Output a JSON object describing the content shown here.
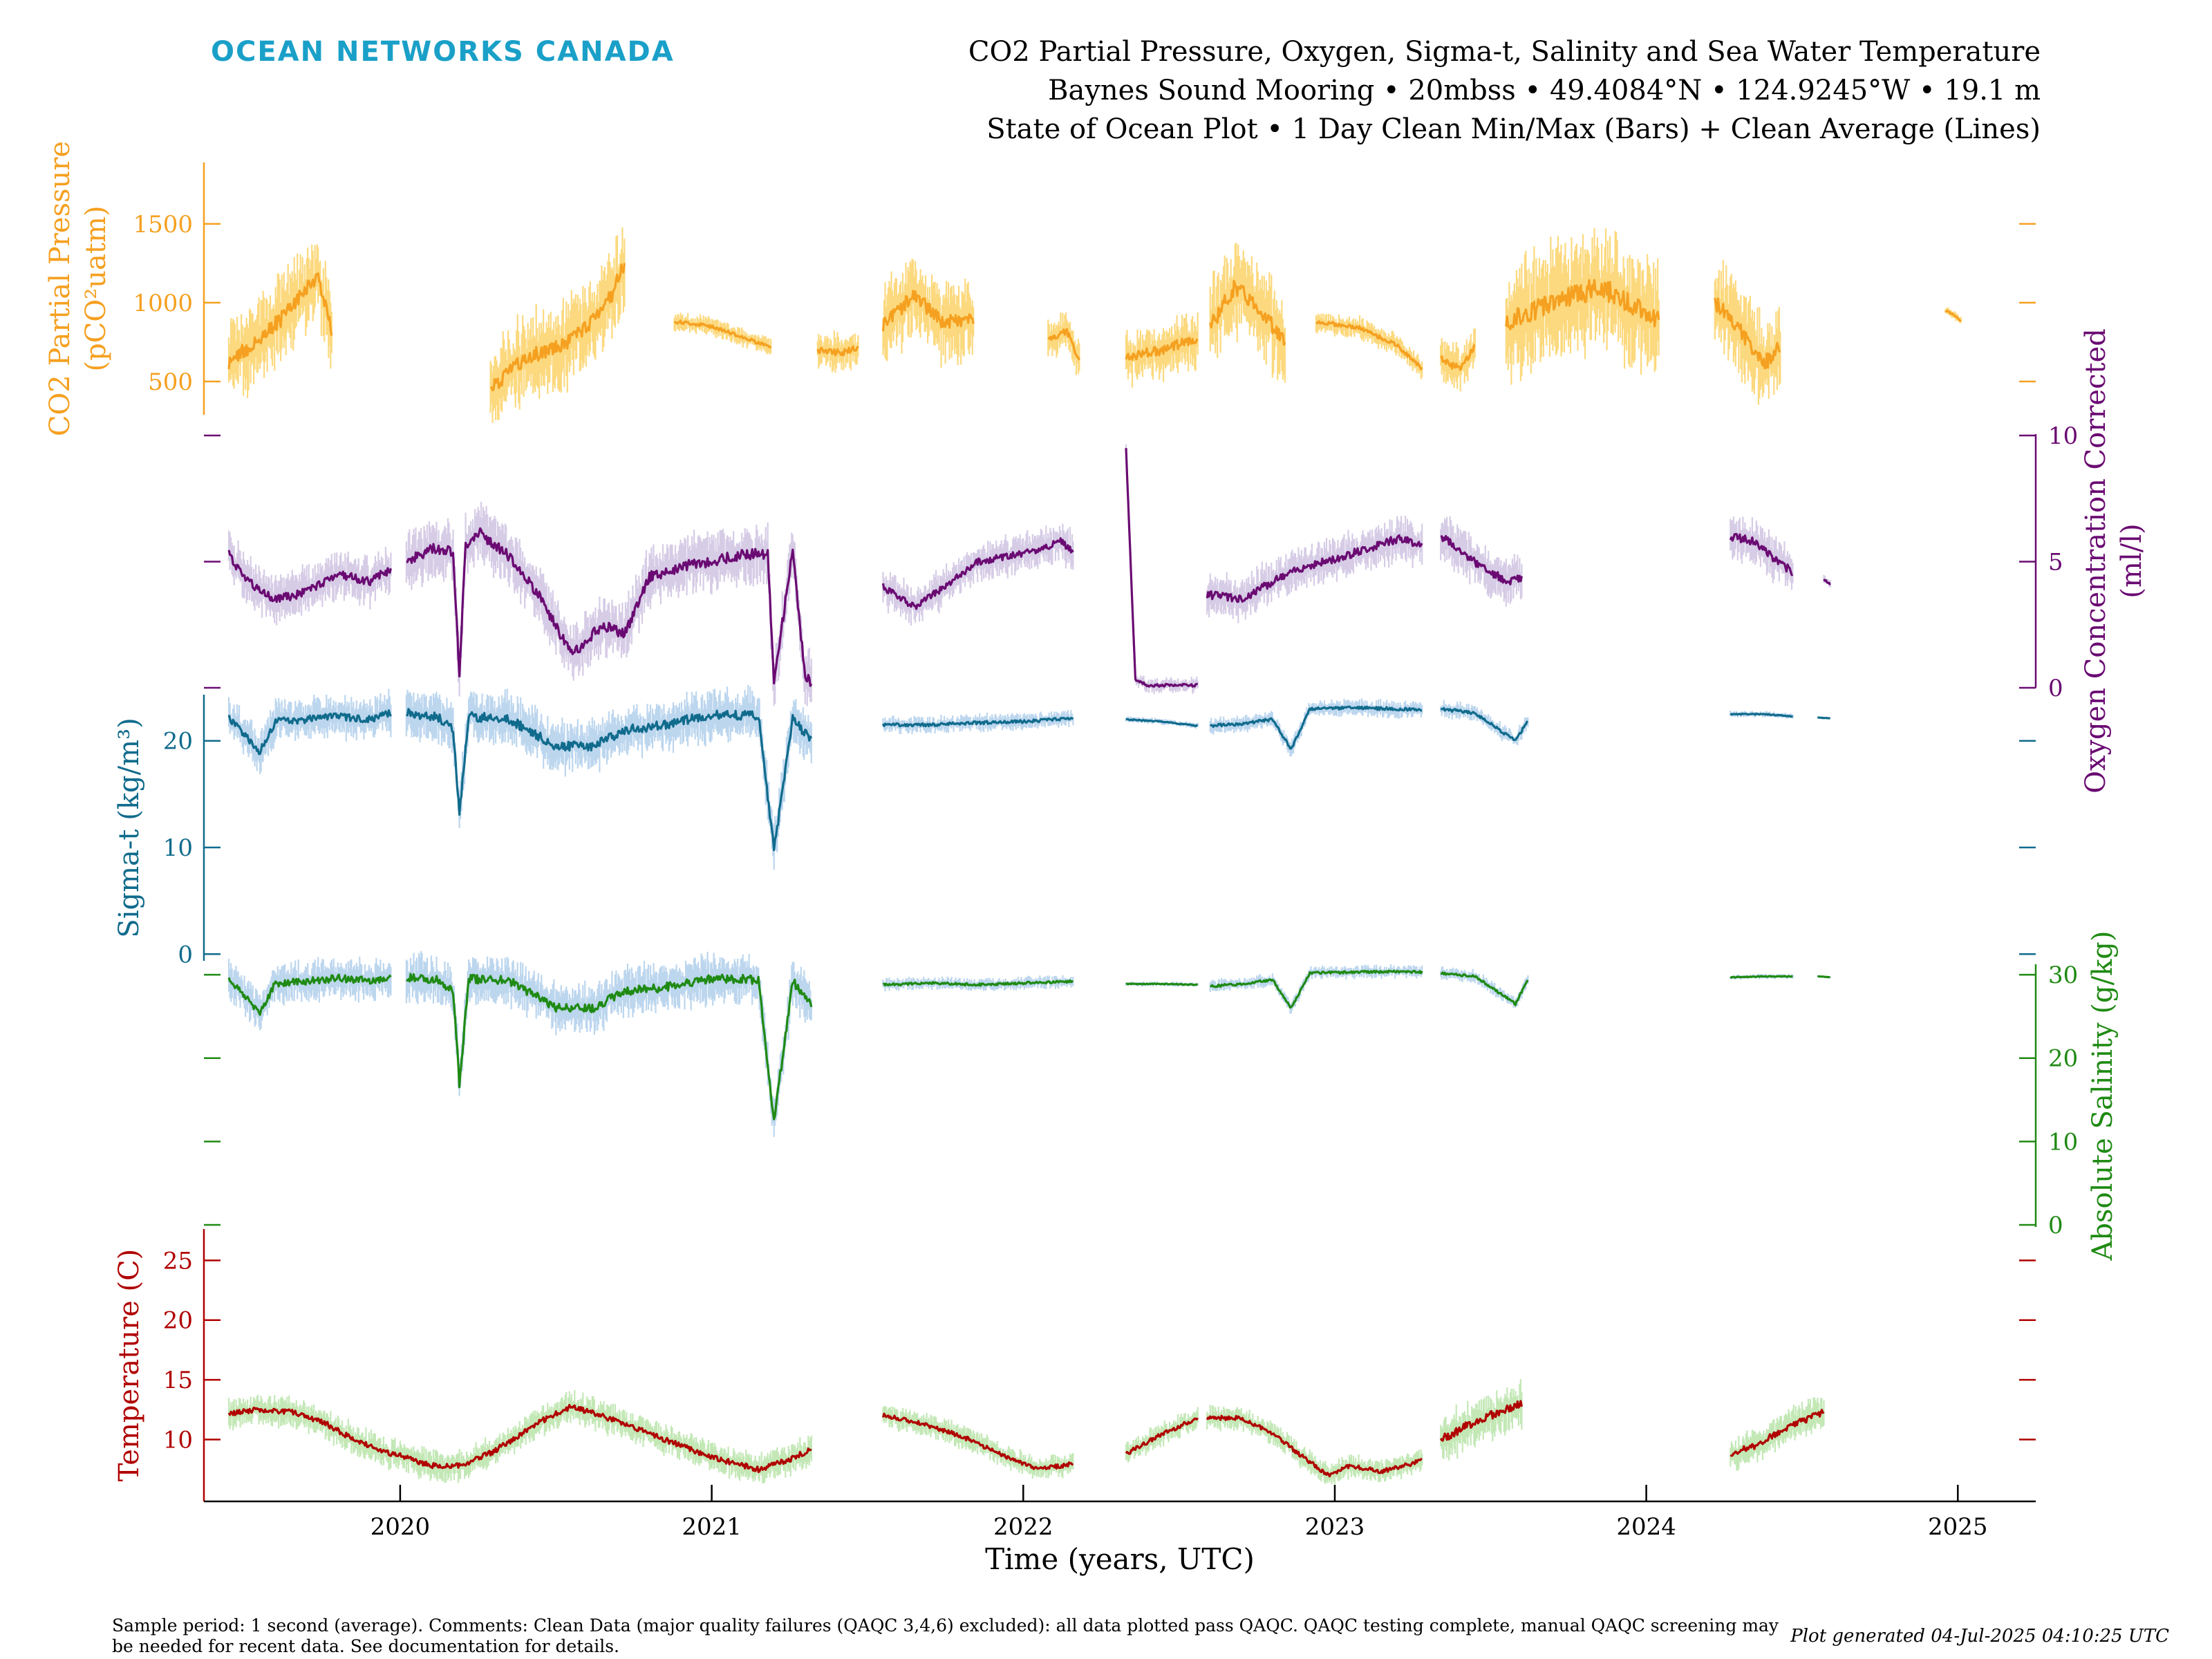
{
  "header": {
    "logo": "OCEAN NETWORKS CANADA",
    "title_line1": "CO2 Partial Pressure, Oxygen, Sigma-t, Salinity and Sea Water Temperature",
    "title_line2": "Baynes Sound Mooring • 20mbss • 49.4084°N • 124.9245°W • 19.1 m",
    "title_line3": "State of Ocean Plot • 1 Day Clean Min/Max (Bars) + Clean Average (Lines)"
  },
  "footer": {
    "comments": "Sample period: 1 second (average). Comments: Clean Data (major quality failures (QAQC 3,4,6) excluded): all data plotted pass QAQC. QAQC testing complete, manual QAQC screening may be needed for recent data. See documentation for details.",
    "generated": "Plot generated 04-Jul-2025 04:10:25 UTC"
  },
  "chart_data": {
    "type": "line",
    "xlabel": "Time (years, UTC)",
    "x_ticks": [
      2020,
      2021,
      2022,
      2023,
      2024,
      2025
    ],
    "xlim": [
      2019.37,
      2025.25
    ],
    "colors": {
      "co2": "#f5a020",
      "co2_band": "#fcd97e",
      "oxygen": "#6a0a72",
      "oxygen_band": "#d6cce6",
      "sigma": "#106b8c",
      "sigma_band": "#bcd6ee",
      "salinity": "#1f8a13",
      "salinity_band": "#bcd6ee",
      "temperature": "#b00000",
      "temperature_band": "#c3e8b6"
    },
    "panels": [
      {
        "key": "co2",
        "ylabel_line1": "CO2 Partial Pressure",
        "ylabel_line2": "(pCO²uatm)",
        "side": "left",
        "ylim": [
          280,
          1890
        ],
        "yticks": [
          500,
          1000,
          1500
        ],
        "segments": [
          {
            "x": [
              2019.45,
              2019.55,
              2019.62,
              2019.68,
              2019.74,
              2019.78
            ],
            "y": [
              620,
              780,
              900,
              1050,
              1150,
              830
            ],
            "spread": 280
          },
          {
            "x": [
              2020.29,
              2020.4,
              2020.52,
              2020.6,
              2020.68,
              2020.72
            ],
            "y": [
              450,
              650,
              720,
              850,
              1050,
              1250
            ],
            "spread": 280
          },
          {
            "x": [
              2020.88,
              2021.0,
              2021.1,
              2021.19
            ],
            "y": [
              880,
              850,
              780,
              720
            ],
            "spread": 60
          },
          {
            "x": [
              2021.34,
              2021.42,
              2021.47
            ],
            "y": [
              700,
              680,
              720
            ],
            "spread": 120
          },
          {
            "x": [
              2021.55,
              2021.65,
              2021.74,
              2021.84
            ],
            "y": [
              850,
              1050,
              880,
              900
            ],
            "spread": 260
          },
          {
            "x": [
              2022.08,
              2022.14,
              2022.18
            ],
            "y": [
              760,
              820,
              640
            ],
            "spread": 130
          },
          {
            "x": [
              2022.33,
              2022.45,
              2022.56
            ],
            "y": [
              660,
              700,
              780
            ],
            "spread": 180
          },
          {
            "x": [
              2022.6,
              2022.68,
              2022.76,
              2022.84
            ],
            "y": [
              850,
              1100,
              960,
              750
            ],
            "spread": 300
          },
          {
            "x": [
              2022.94,
              2023.08,
              2023.2,
              2023.28
            ],
            "y": [
              880,
              840,
              730,
              580
            ],
            "spread": 70
          },
          {
            "x": [
              2023.34,
              2023.4,
              2023.45
            ],
            "y": [
              640,
              580,
              720
            ],
            "spread": 140
          },
          {
            "x": [
              2023.55,
              2023.7,
              2023.85,
              2024.04
            ],
            "y": [
              880,
              1000,
              1100,
              900
            ],
            "spread": 380
          },
          {
            "x": [
              2024.22,
              2024.3,
              2024.38,
              2024.43
            ],
            "y": [
              1000,
              820,
              620,
              720
            ],
            "spread": 300
          },
          {
            "x": [
              2024.96,
              2024.99,
              2025.01
            ],
            "y": [
              950,
              920,
              880
            ],
            "spread": 30
          }
        ]
      },
      {
        "key": "oxygen",
        "ylabel_line1": "Oxygen Concentration Corrected",
        "ylabel_line2": "(ml/l)",
        "side": "right",
        "ylim": [
          0,
          10
        ],
        "yticks": [
          0,
          5,
          10
        ],
        "segments": [
          {
            "x": [
              2019.45,
              2019.5,
              2019.6,
              2019.7,
              2019.8,
              2019.9,
              2019.97
            ],
            "y": [
              5.3,
              4.3,
              3.5,
              3.8,
              4.5,
              4.2,
              4.7
            ],
            "spread": 1.0
          },
          {
            "x": [
              2020.02,
              2020.1,
              2020.17,
              2020.19,
              2020.21,
              2020.25,
              2020.35,
              2020.45,
              2020.55,
              2020.65,
              2020.72,
              2020.8,
              2020.9,
              2021.0,
              2021.1,
              2021.18,
              2021.2,
              2021.26,
              2021.3,
              2021.32
            ],
            "y": [
              5.0,
              5.5,
              5.4,
              0.6,
              5.6,
              6.2,
              5.2,
              3.6,
              1.3,
              2.5,
              2.1,
              4.4,
              4.8,
              5.0,
              5.3,
              5.3,
              0.3,
              5.4,
              0.4,
              0.2
            ],
            "spread": 1.2
          },
          {
            "x": [
              2021.55,
              2021.65,
              2021.75,
              2021.85,
              2021.95,
              2022.05,
              2022.12,
              2022.16
            ],
            "y": [
              4.0,
              3.2,
              4.0,
              5.0,
              5.2,
              5.5,
              5.8,
              5.4
            ],
            "spread": 0.8
          },
          {
            "x": [
              2022.33,
              2022.36,
              2022.4,
              2022.5,
              2022.56
            ],
            "y": [
              9.5,
              0.3,
              0.1,
              0.1,
              0.1
            ],
            "spread": 0.3
          },
          {
            "x": [
              2022.59,
              2022.7,
              2022.8,
              2022.9,
              2023.0,
              2023.1,
              2023.2,
              2023.28
            ],
            "y": [
              3.7,
              3.5,
              4.2,
              4.8,
              5.1,
              5.5,
              5.9,
              5.7
            ],
            "spread": 0.9
          },
          {
            "x": [
              2023.34,
              2023.45,
              2023.55,
              2023.6
            ],
            "y": [
              6.0,
              5.0,
              4.2,
              4.3
            ],
            "spread": 1.0
          },
          {
            "x": [
              2024.27,
              2024.35,
              2024.42,
              2024.47
            ],
            "y": [
              6.0,
              5.8,
              5.0,
              4.6
            ],
            "spread": 0.9
          },
          {
            "x": [
              2024.57,
              2024.59
            ],
            "y": [
              4.3,
              4.1
            ],
            "spread": 0.2
          }
        ]
      },
      {
        "key": "sigma",
        "ylabel_line1": "Sigma-t (kg/m³)",
        "side": "left",
        "ylim": [
          -0.5,
          24
        ],
        "yticks": [
          0,
          10,
          20
        ],
        "segments": [
          {
            "x": [
              2019.45,
              2019.55,
              2019.6,
              2019.7,
              2019.8,
              2019.9,
              2019.97
            ],
            "y": [
              22.2,
              19.0,
              21.8,
              22.0,
              22.3,
              22.0,
              22.6
            ],
            "spread": 2.0
          },
          {
            "x": [
              2020.02,
              2020.12,
              2020.17,
              2020.19,
              2020.22,
              2020.35,
              2020.5,
              2020.62,
              2020.72,
              2020.85,
              2021.0,
              2021.15,
              2021.2,
              2021.26,
              2021.32
            ],
            "y": [
              22.6,
              22.3,
              21.0,
              13.0,
              22.3,
              22.0,
              19.5,
              19.5,
              21.0,
              21.5,
              22.5,
              22.3,
              9.8,
              22.0,
              20.0
            ],
            "spread": 2.5
          },
          {
            "x": [
              2021.55,
              2021.7,
              2021.85,
              2022.0,
              2022.16
            ],
            "y": [
              21.5,
              21.5,
              21.7,
              21.8,
              22.1
            ],
            "spread": 0.8
          },
          {
            "x": [
              2022.33,
              2022.45,
              2022.56
            ],
            "y": [
              22.0,
              21.8,
              21.4
            ],
            "spread": 0.3
          },
          {
            "x": [
              2022.6,
              2022.7,
              2022.8,
              2022.86,
              2022.92,
              2023.05,
              2023.2,
              2023.28
            ],
            "y": [
              21.4,
              21.6,
              22.0,
              19.2,
              23.0,
              23.1,
              23.0,
              22.9
            ],
            "spread": 0.8
          },
          {
            "x": [
              2023.34,
              2023.45,
              2023.58,
              2023.62
            ],
            "y": [
              23.0,
              22.6,
              20.0,
              21.9
            ],
            "spread": 0.8
          },
          {
            "x": [
              2024.27,
              2024.38,
              2024.47
            ],
            "y": [
              22.5,
              22.5,
              22.3
            ],
            "spread": 0.3
          },
          {
            "x": [
              2024.55,
              2024.59
            ],
            "y": [
              22.2,
              22.1
            ],
            "spread": 0.1
          }
        ]
      },
      {
        "key": "salinity",
        "ylabel_line1": "Absolute Salinity (g/kg)",
        "side": "right",
        "ylim": [
          0,
          31.5
        ],
        "yticks": [
          0,
          10,
          20,
          30
        ],
        "segments": [
          {
            "x": [
              2019.45,
              2019.55,
              2019.6,
              2019.7,
              2019.8,
              2019.9,
              2019.97
            ],
            "y": [
              29.5,
              25.5,
              29.0,
              29.2,
              29.6,
              29.3,
              29.7
            ],
            "spread": 2.5
          },
          {
            "x": [
              2020.02,
              2020.12,
              2020.17,
              2020.19,
              2020.22,
              2020.35,
              2020.5,
              2020.62,
              2020.72,
              2020.85,
              2021.0,
              2021.15,
              2021.2,
              2021.26,
              2021.32
            ],
            "y": [
              29.7,
              29.4,
              28.0,
              17.0,
              29.5,
              29.3,
              26.0,
              26.0,
              28.0,
              28.5,
              29.6,
              29.4,
              12.5,
              29.2,
              26.5
            ],
            "spread": 3.0
          },
          {
            "x": [
              2021.55,
              2021.7,
              2021.85,
              2022.0,
              2022.16
            ],
            "y": [
              28.8,
              29.0,
              28.8,
              29.0,
              29.2
            ],
            "spread": 0.8
          },
          {
            "x": [
              2022.33,
              2022.45,
              2022.56
            ],
            "y": [
              28.9,
              28.9,
              28.8
            ],
            "spread": 0.3
          },
          {
            "x": [
              2022.6,
              2022.7,
              2022.8,
              2022.86,
              2022.92,
              2023.05,
              2023.2,
              2023.28
            ],
            "y": [
              28.6,
              28.9,
              29.4,
              26.0,
              30.2,
              30.3,
              30.4,
              30.3
            ],
            "spread": 0.8
          },
          {
            "x": [
              2023.34,
              2023.45,
              2023.58,
              2023.62
            ],
            "y": [
              30.2,
              29.8,
              26.5,
              29.4
            ],
            "spread": 0.8
          },
          {
            "x": [
              2024.27,
              2024.38,
              2024.47
            ],
            "y": [
              29.7,
              29.8,
              29.8
            ],
            "spread": 0.3
          },
          {
            "x": [
              2024.55,
              2024.59
            ],
            "y": [
              29.8,
              29.7
            ],
            "spread": 0.1
          }
        ]
      },
      {
        "key": "temperature",
        "ylabel_line1": "Temperature (C)",
        "side": "left",
        "ylim": [
          5.8,
          27.8
        ],
        "yticks": [
          10,
          15,
          20,
          25
        ],
        "segments": [
          {
            "x": [
              2019.45,
              2019.55,
              2019.65,
              2019.75,
              2019.85,
              2019.95,
              2020.02,
              2020.1,
              2020.2,
              2020.3,
              2020.45,
              2020.55,
              2020.7,
              2020.85,
              2021.0,
              2021.15,
              2021.25,
              2021.32
            ],
            "y": [
              12.2,
              12.5,
              12.3,
              11.5,
              10.0,
              9.0,
              8.5,
              7.8,
              7.8,
              9.0,
              11.5,
              12.8,
              11.5,
              10.0,
              8.5,
              7.5,
              8.3,
              9.2
            ],
            "spread": 1.3
          },
          {
            "x": [
              2021.55,
              2021.65,
              2021.8,
              2021.95,
              2022.05,
              2022.12,
              2022.16
            ],
            "y": [
              12.0,
              11.5,
              10.3,
              8.5,
              7.5,
              7.8,
              8.0
            ],
            "spread": 1.0
          },
          {
            "x": [
              2022.33,
              2022.45,
              2022.56
            ],
            "y": [
              8.8,
              10.5,
              11.8
            ],
            "spread": 1.0
          },
          {
            "x": [
              2022.59,
              2022.7,
              2022.8,
              2022.9,
              2022.98,
              2023.05,
              2023.15,
              2023.25,
              2023.28
            ],
            "y": [
              11.8,
              11.8,
              10.5,
              8.5,
              7.0,
              7.8,
              7.3,
              8.0,
              8.3
            ],
            "spread": 1.0
          },
          {
            "x": [
              2023.34,
              2023.45,
              2023.55,
              2023.6
            ],
            "y": [
              10.0,
              11.5,
              12.5,
              13.0
            ],
            "spread": 2.0
          },
          {
            "x": [
              2024.27,
              2024.35,
              2024.45,
              2024.57
            ],
            "y": [
              8.8,
              9.5,
              11.0,
              12.3
            ],
            "spread": 1.5
          }
        ]
      }
    ]
  }
}
